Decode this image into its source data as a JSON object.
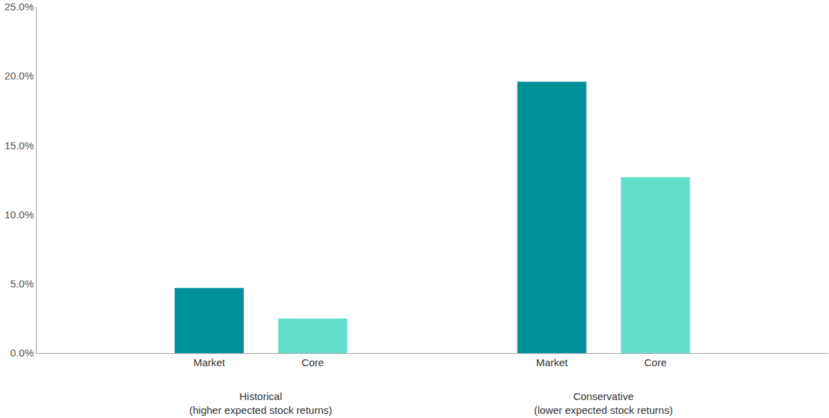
{
  "chart_data": {
    "type": "bar",
    "categories": [
      "Historical\n(higher expected stock returns)",
      "Conservative\n(lower expected stock returns)"
    ],
    "series": [
      {
        "name": "Market",
        "color": "#00909a",
        "values": [
          4.7,
          19.6
        ]
      },
      {
        "name": "Core",
        "color": "#63e0cb",
        "values": [
          2.5,
          12.7
        ]
      }
    ],
    "ylim": [
      0,
      25
    ],
    "yticks": [
      {
        "value": 0,
        "label": "0.0%"
      },
      {
        "value": 5,
        "label": "5.0%"
      },
      {
        "value": 10,
        "label": "10.0%"
      },
      {
        "value": 15,
        "label": "15.0%"
      },
      {
        "value": 20,
        "label": "20.0%"
      },
      {
        "value": 25,
        "label": "25.0%"
      }
    ],
    "grid": false
  }
}
